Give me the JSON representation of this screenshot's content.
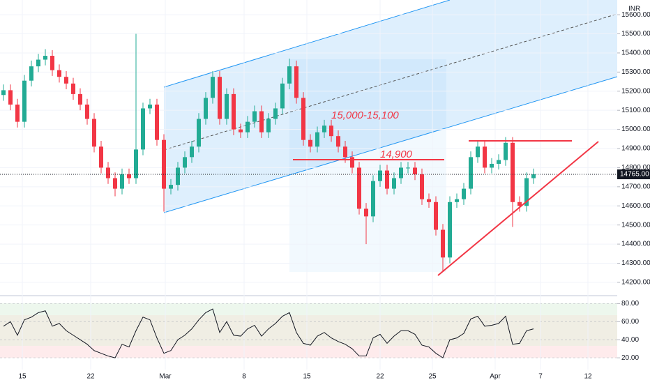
{
  "chart_data": [
    {
      "type": "candlestick",
      "currency": "INR",
      "open": [
        15180,
        15205,
        15130,
        15040,
        15255,
        15330,
        15365,
        15385,
        15310,
        15275,
        15240,
        15185,
        15130,
        15055,
        14910,
        14800,
        14745,
        14690,
        14765,
        14745,
        14895,
        15110,
        15130,
        14945,
        14690,
        14710,
        14800,
        14855,
        14910,
        15055,
        15165,
        15275,
        15055,
        15185,
        15000,
        14985,
        15040,
        15095,
        14985,
        15055,
        15110,
        15240,
        15330,
        15165,
        14945,
        14910,
        14985,
        15020,
        14965,
        14910,
        14855,
        14800,
        14585,
        14545,
        14730,
        14785,
        14690,
        14745,
        14800,
        14800,
        14765,
        14635,
        14620,
        14475,
        14330,
        14620,
        14635,
        14690,
        14855,
        14910,
        14800,
        14820,
        14840,
        14930,
        14620,
        14600,
        14745
      ],
      "high": [
        15235,
        15235,
        15160,
        15285,
        15360,
        15395,
        15420,
        15415,
        15340,
        15305,
        15270,
        15215,
        15160,
        15085,
        14940,
        14830,
        14775,
        14795,
        14795,
        15500,
        15140,
        15160,
        15160,
        14975,
        14740,
        14830,
        14885,
        14940,
        15085,
        15195,
        15305,
        15305,
        15215,
        15215,
        15030,
        15070,
        15125,
        15125,
        15085,
        15140,
        15270,
        15370,
        15360,
        15195,
        14975,
        15015,
        15050,
        15050,
        14995,
        14940,
        14885,
        14830,
        14615,
        14760,
        14815,
        14815,
        14775,
        14830,
        14830,
        14830,
        14795,
        14665,
        14650,
        14505,
        14650,
        14665,
        14720,
        14885,
        14940,
        14940,
        14850,
        14870,
        14960,
        14960,
        14650,
        14775,
        14795
      ],
      "low": [
        15150,
        15100,
        15010,
        15010,
        15225,
        15300,
        15335,
        15280,
        15245,
        15210,
        15155,
        15100,
        15025,
        14880,
        14770,
        14715,
        14650,
        14660,
        14715,
        14715,
        14865,
        15080,
        14915,
        14570,
        14660,
        14680,
        14770,
        14825,
        14880,
        15025,
        15135,
        15025,
        15025,
        14970,
        14955,
        14955,
        15010,
        14955,
        14955,
        15025,
        15080,
        15210,
        15135,
        14915,
        14880,
        14880,
        14955,
        14935,
        14880,
        14825,
        14770,
        14555,
        14400,
        14515,
        14700,
        14660,
        14660,
        14715,
        14770,
        14735,
        14605,
        14590,
        14445,
        14260,
        14300,
        14590,
        14605,
        14660,
        14825,
        14770,
        14770,
        14790,
        14810,
        14490,
        14570,
        14570,
        14715
      ],
      "close": [
        15205,
        15130,
        15040,
        15255,
        15330,
        15365,
        15385,
        15310,
        15275,
        15240,
        15185,
        15130,
        15055,
        14910,
        14800,
        14745,
        14690,
        14765,
        14745,
        14895,
        15110,
        15130,
        14945,
        14690,
        14710,
        14800,
        14855,
        14910,
        15055,
        15165,
        15275,
        15055,
        15185,
        15000,
        14985,
        15040,
        15095,
        14985,
        15055,
        15110,
        15240,
        15330,
        15165,
        14945,
        14910,
        14985,
        15020,
        14965,
        14910,
        14855,
        14800,
        14585,
        14545,
        14730,
        14785,
        14690,
        14745,
        14800,
        14800,
        14765,
        14635,
        14620,
        14475,
        14330,
        14620,
        14635,
        14690,
        14855,
        14910,
        14800,
        14820,
        14840,
        14930,
        14620,
        14600,
        14745,
        14765
      ],
      "up_color": "#22ab94",
      "down_color": "#f23645",
      "last_price": {
        "value": 14765,
        "label": "14765.00"
      },
      "annotations": [
        "15,000-15,100",
        "14,900"
      ],
      "xlim": [
        -0.5,
        88
      ],
      "xticks": [
        {
          "value": 2.7,
          "label": "15"
        },
        {
          "value": 12.5,
          "label": "22"
        },
        {
          "value": 23.2,
          "label": "Mar"
        },
        {
          "value": 34.5,
          "label": "8"
        },
        {
          "value": 43.5,
          "label": "15"
        },
        {
          "value": 54,
          "label": "22"
        },
        {
          "value": 61.5,
          "label": "25"
        },
        {
          "value": 70.5,
          "label": "Apr"
        },
        {
          "value": 77,
          "label": "7"
        },
        {
          "value": 83.8,
          "label": "12"
        }
      ],
      "ylim": [
        14145,
        15677
      ],
      "yticks": [
        {
          "value": 14200,
          "label": "14200.00"
        },
        {
          "value": 14300,
          "label": "14300.00"
        },
        {
          "value": 14400,
          "label": "14400.00"
        },
        {
          "value": 14500,
          "label": "14500.00"
        },
        {
          "value": 14600,
          "label": "14600.00"
        },
        {
          "value": 14700,
          "label": "14700.00"
        },
        {
          "value": 14800,
          "label": "14800.00"
        },
        {
          "value": 14900,
          "label": "14900.00"
        },
        {
          "value": 15000,
          "label": "15000.00"
        },
        {
          "value": 15100,
          "label": "15100.00"
        },
        {
          "value": 15200,
          "label": "15200.00"
        },
        {
          "value": 15300,
          "label": "15300.00"
        },
        {
          "value": 15400,
          "label": "15400.00"
        },
        {
          "value": 15500,
          "label": "15500.00"
        },
        {
          "value": 15600,
          "label": "15600.00"
        }
      ],
      "grid": true
    },
    {
      "type": "line",
      "color": "#131722",
      "values": [
        55,
        60,
        45,
        62,
        65,
        70,
        72,
        55,
        58,
        50,
        45,
        40,
        35,
        28,
        25,
        22,
        20,
        35,
        32,
        50,
        65,
        62,
        42,
        25,
        28,
        40,
        45,
        52,
        62,
        70,
        74,
        48,
        60,
        45,
        44,
        52,
        56,
        44,
        52,
        58,
        66,
        70,
        48,
        36,
        34,
        44,
        48,
        42,
        38,
        35,
        30,
        22,
        22,
        42,
        46,
        36,
        44,
        50,
        50,
        46,
        34,
        32,
        25,
        20,
        40,
        42,
        47,
        63,
        66,
        55,
        56,
        58,
        66,
        35,
        36,
        50,
        52
      ],
      "ylim": [
        7,
        88
      ],
      "yticks": [
        {
          "value": 20,
          "label": "20.00"
        },
        {
          "value": 40,
          "label": "40.00"
        },
        {
          "value": 60,
          "label": "60.00"
        },
        {
          "value": 80,
          "label": "80.00"
        }
      ]
    }
  ]
}
